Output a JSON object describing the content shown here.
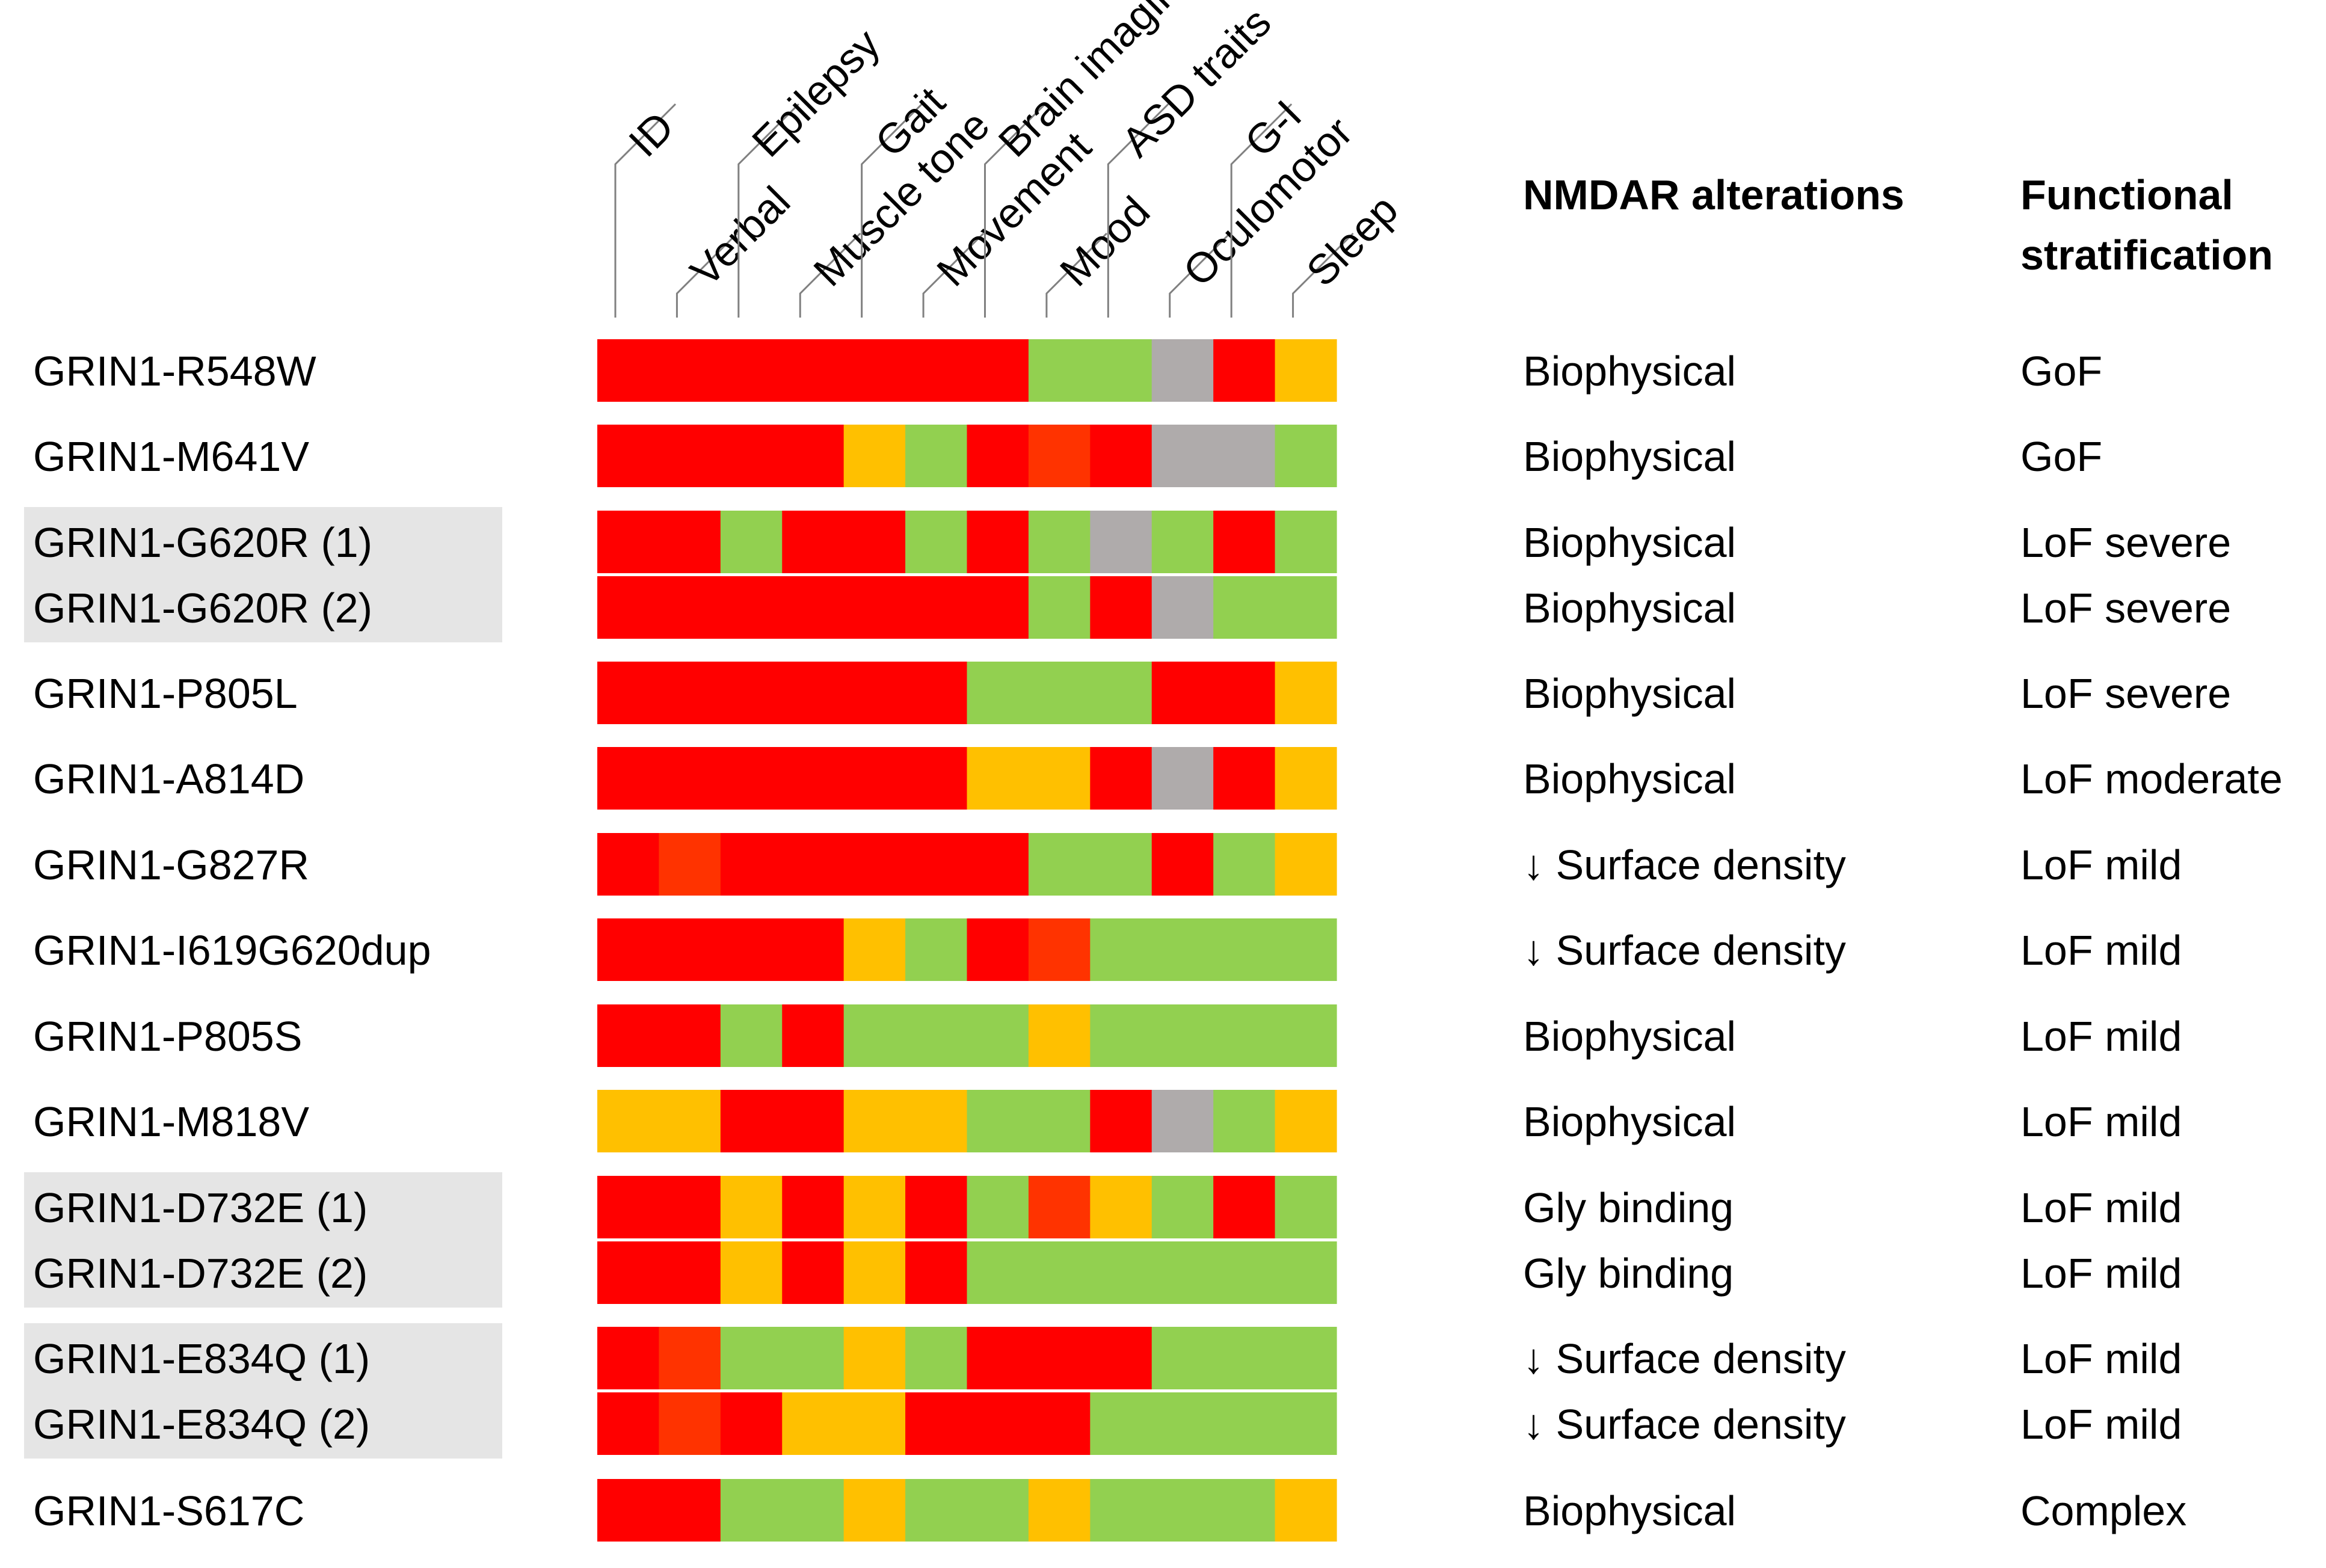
{
  "chart_data": {
    "type": "heatmap",
    "title": "",
    "columns": [
      "ID",
      "Verbal",
      "Epilepsy",
      "Muscle tone",
      "Gait",
      "Movement",
      "Brain imaging",
      "Mood",
      "ASD traits",
      "Oculomotor",
      "G-I",
      "Sleep"
    ],
    "right_headers": {
      "alterations": [
        "NMDAR alterations"
      ],
      "stratification": [
        "Functional",
        "stratification"
      ]
    },
    "legend_codes": {
      "R": {
        "color": "#ff0000",
        "meaning": "red"
      },
      "O": {
        "color": "#ff3300",
        "meaning": "orange-red"
      },
      "Y": {
        "color": "#ffc000",
        "meaning": "yellow"
      },
      "G": {
        "color": "#92d050",
        "meaning": "green"
      },
      "X": {
        "color": "#afabab",
        "meaning": "grey"
      }
    },
    "rows": [
      {
        "label": "GRIN1-R548W",
        "cells": [
          "R",
          "R",
          "R",
          "R",
          "R",
          "R",
          "R",
          "G",
          "G",
          "X",
          "R",
          "Y"
        ],
        "alteration": "Biophysical",
        "stratification": "GoF"
      },
      {
        "label": "GRIN1-M641V",
        "cells": [
          "R",
          "R",
          "R",
          "R",
          "Y",
          "G",
          "R",
          "O",
          "R",
          "X",
          "X",
          "G"
        ],
        "alteration": "Biophysical",
        "stratification": "GoF"
      },
      {
        "label": "GRIN1-G620R (1)",
        "cells": [
          "R",
          "R",
          "G",
          "R",
          "R",
          "G",
          "R",
          "G",
          "X",
          "G",
          "R",
          "G"
        ],
        "alteration": "Biophysical",
        "stratification": "LoF severe"
      },
      {
        "label": "GRIN1-G620R (2)",
        "cells": [
          "R",
          "R",
          "R",
          "R",
          "R",
          "R",
          "R",
          "G",
          "R",
          "X",
          "G",
          "G"
        ],
        "alteration": "Biophysical",
        "stratification": "LoF severe"
      },
      {
        "label": "GRIN1-P805L",
        "cells": [
          "R",
          "R",
          "R",
          "R",
          "R",
          "R",
          "G",
          "G",
          "G",
          "R",
          "R",
          "Y"
        ],
        "alteration": "Biophysical",
        "stratification": "LoF severe"
      },
      {
        "label": "GRIN1-A814D",
        "cells": [
          "R",
          "R",
          "R",
          "R",
          "R",
          "R",
          "Y",
          "Y",
          "R",
          "X",
          "R",
          "Y"
        ],
        "alteration": "Biophysical",
        "stratification": "LoF moderate"
      },
      {
        "label": "GRIN1-G827R",
        "cells": [
          "R",
          "O",
          "R",
          "R",
          "R",
          "R",
          "R",
          "G",
          "G",
          "R",
          "G",
          "Y"
        ],
        "alteration": "↓ Surface density",
        "stratification": "LoF mild"
      },
      {
        "label": "GRIN1-I619G620dup",
        "cells": [
          "R",
          "R",
          "R",
          "R",
          "Y",
          "G",
          "R",
          "O",
          "G",
          "G",
          "G",
          "G"
        ],
        "alteration": "↓ Surface density",
        "stratification": "LoF mild"
      },
      {
        "label": "GRIN1-P805S",
        "cells": [
          "R",
          "R",
          "G",
          "R",
          "G",
          "G",
          "G",
          "Y",
          "G",
          "G",
          "G",
          "G"
        ],
        "alteration": "Biophysical",
        "stratification": "LoF mild"
      },
      {
        "label": "GRIN1-M818V",
        "cells": [
          "Y",
          "Y",
          "R",
          "R",
          "Y",
          "Y",
          "G",
          "G",
          "R",
          "X",
          "G",
          "Y"
        ],
        "alteration": "Biophysical",
        "stratification": "LoF mild"
      },
      {
        "label": "GRIN1-D732E (1)",
        "cells": [
          "R",
          "R",
          "Y",
          "R",
          "Y",
          "R",
          "G",
          "O",
          "Y",
          "G",
          "R",
          "G"
        ],
        "alteration": "Gly binding",
        "stratification": "LoF mild"
      },
      {
        "label": "GRIN1-D732E (2)",
        "cells": [
          "R",
          "R",
          "Y",
          "R",
          "Y",
          "R",
          "G",
          "G",
          "G",
          "G",
          "G",
          "G"
        ],
        "alteration": "Gly binding",
        "stratification": "LoF mild"
      },
      {
        "label": "GRIN1-E834Q (1)",
        "cells": [
          "R",
          "O",
          "G",
          "G",
          "Y",
          "G",
          "R",
          "R",
          "R",
          "G",
          "G",
          "G"
        ],
        "alteration": "↓ Surface density",
        "stratification": "LoF mild"
      },
      {
        "label": "GRIN1-E834Q (2)",
        "cells": [
          "R",
          "O",
          "R",
          "Y",
          "Y",
          "R",
          "R",
          "R",
          "G",
          "G",
          "G",
          "G"
        ],
        "alteration": "↓ Surface density",
        "stratification": "LoF mild"
      },
      {
        "label": "GRIN1-S617C",
        "cells": [
          "R",
          "R",
          "G",
          "G",
          "Y",
          "G",
          "G",
          "Y",
          "G",
          "G",
          "G",
          "Y"
        ],
        "alteration": "Biophysical",
        "stratification": "Complex"
      }
    ],
    "highlighted_groups": [
      {
        "rows": [
          "GRIN1-G620R (1)",
          "GRIN1-G620R (2)"
        ]
      },
      {
        "rows": [
          "GRIN1-D732E (1)",
          "GRIN1-D732E (2)"
        ]
      },
      {
        "rows": [
          "GRIN1-E834Q (1)",
          "GRIN1-E834Q (2)"
        ]
      }
    ]
  }
}
